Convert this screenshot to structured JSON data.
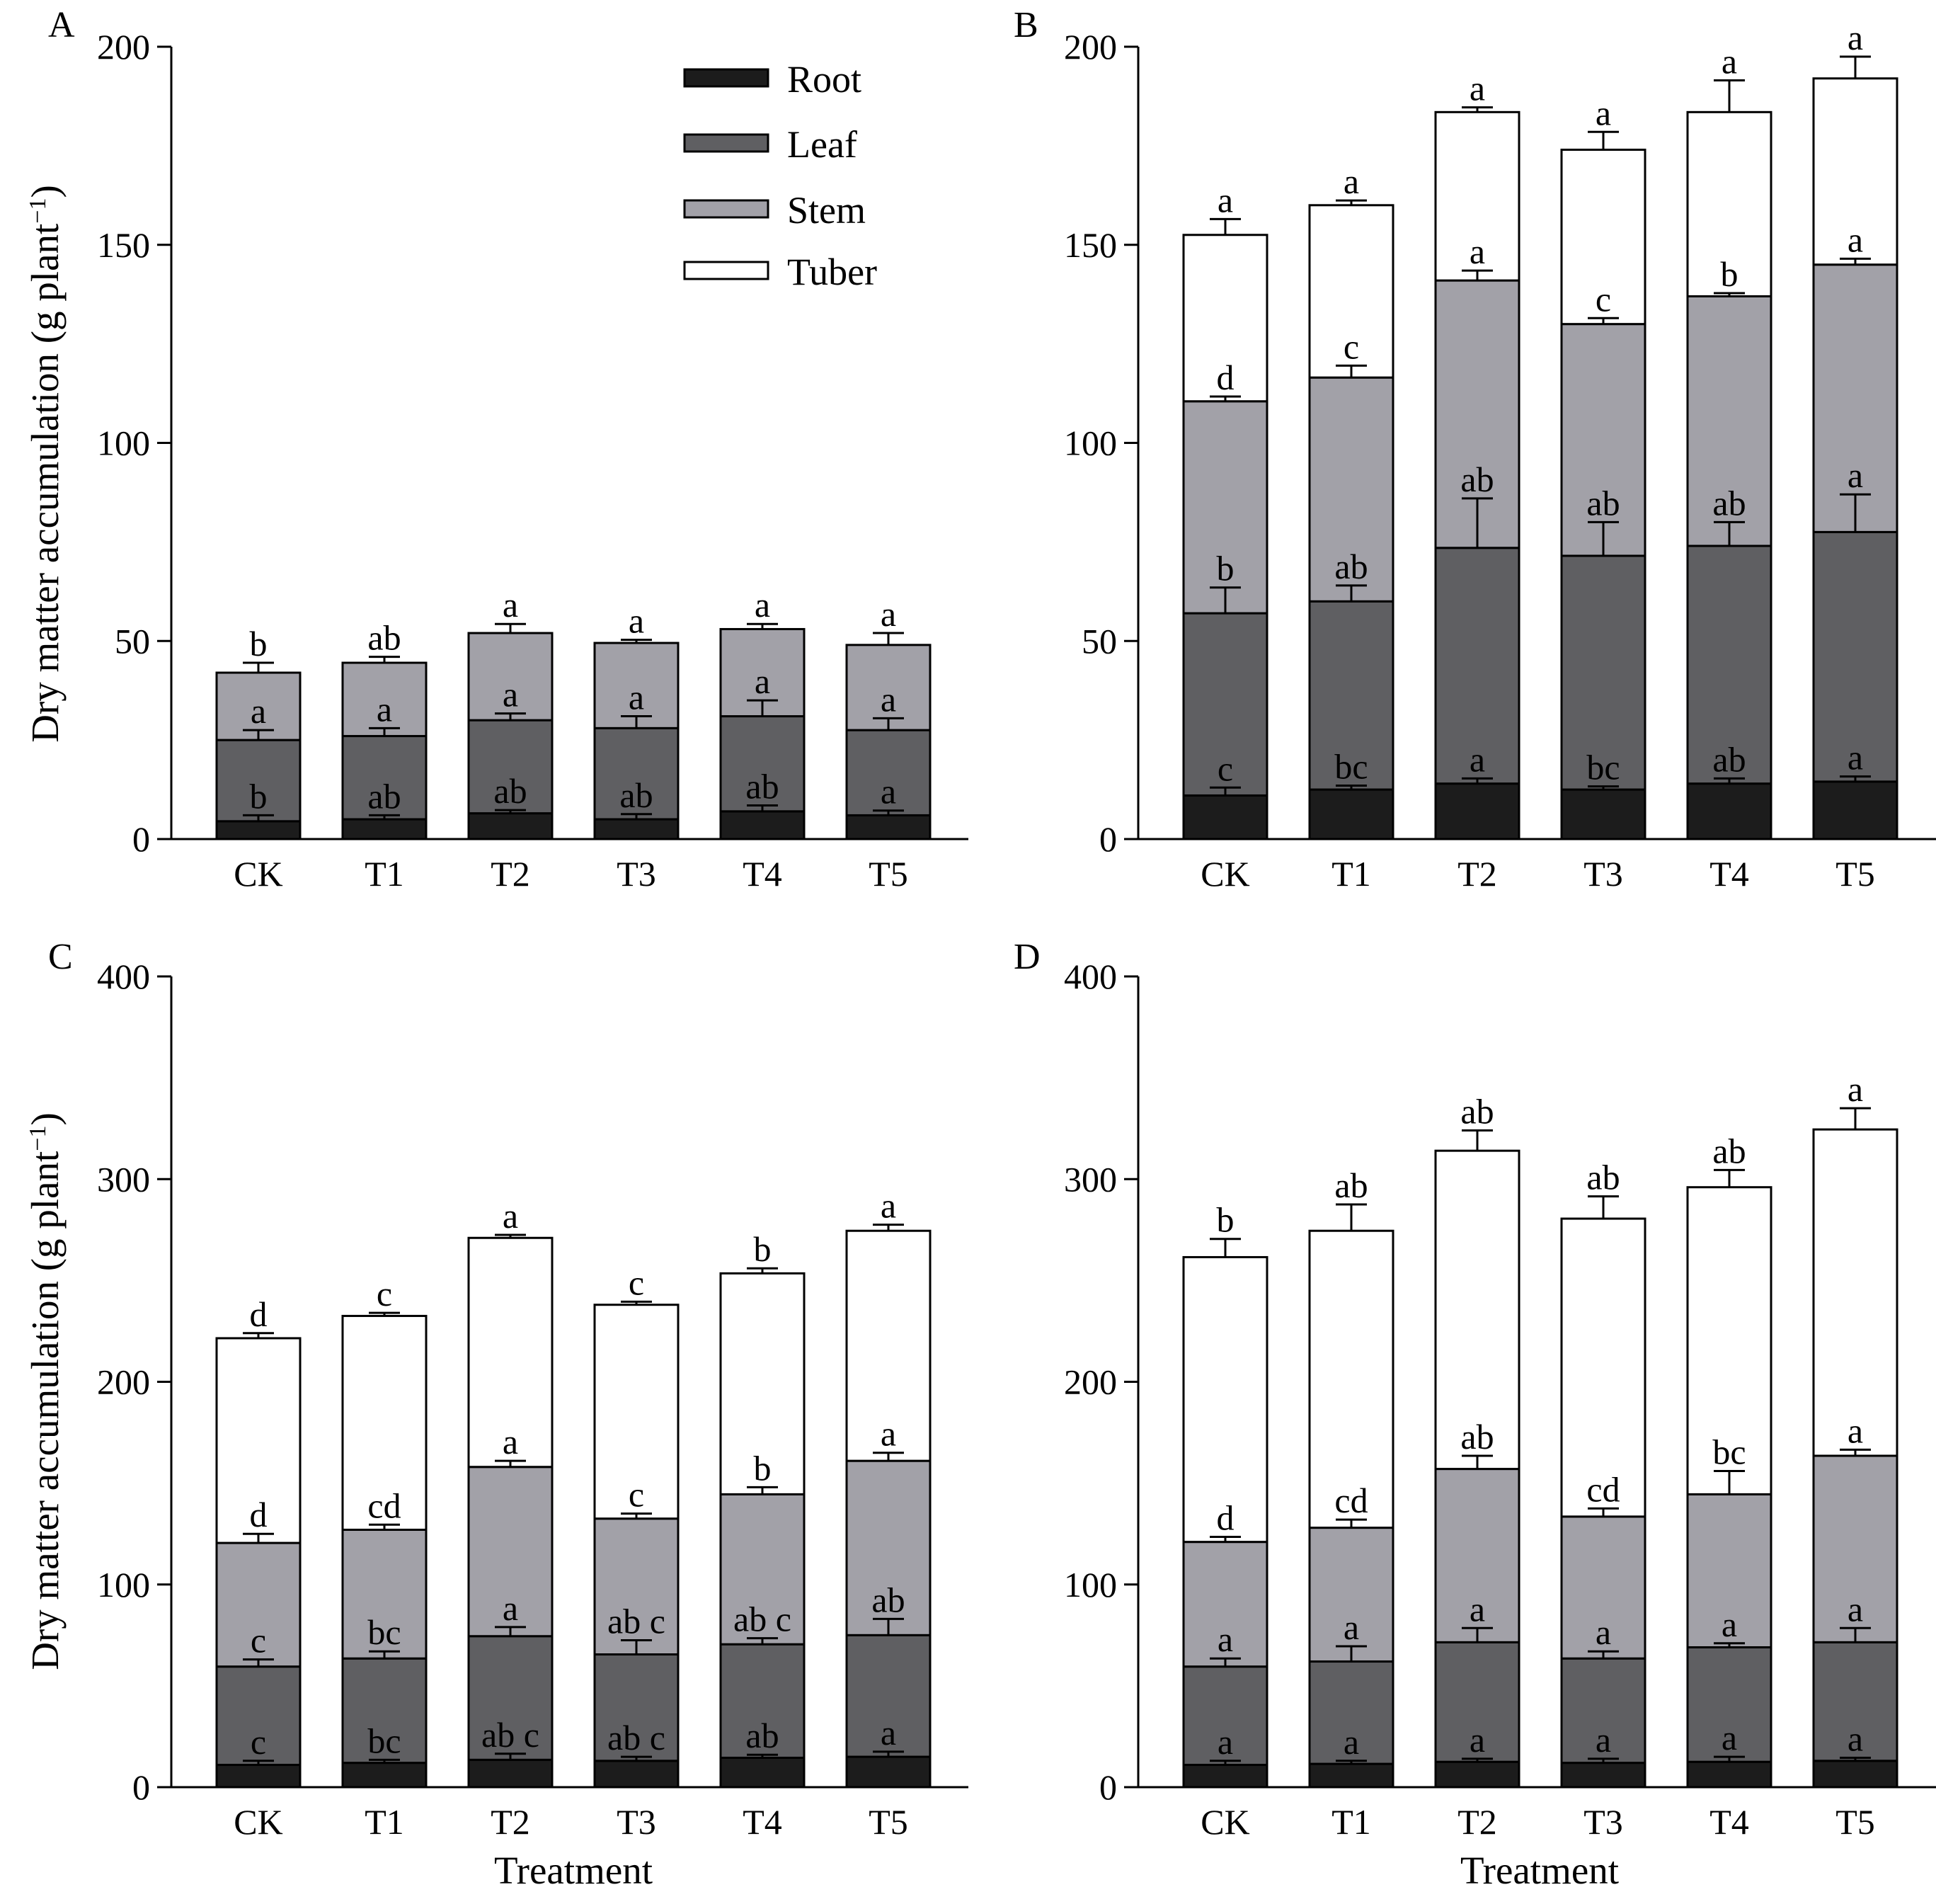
{
  "y_axis_label": "Dry matter accumulation (g plant",
  "y_axis_label_sup": "−1",
  "y_axis_label_close": ")",
  "legend": [
    {
      "name": "Root",
      "color": "#1c1c1c"
    },
    {
      "name": "Leaf",
      "color": "#5f5f62"
    },
    {
      "name": "Stem",
      "color": "#a2a1a8"
    },
    {
      "name": "Tuber",
      "color": "#ffffff"
    }
  ],
  "chart_data": [
    {
      "panel": "A",
      "type": "bar",
      "stacked": true,
      "categories": [
        "CK",
        "T1",
        "T2",
        "T3",
        "T4",
        "T5"
      ],
      "xlabel": "",
      "ylim": [
        0,
        200
      ],
      "yticks": [
        0,
        50,
        100,
        150,
        200
      ],
      "series": [
        {
          "name": "Root",
          "values": [
            4.5,
            5,
            6.5,
            5,
            7,
            6
          ],
          "errors": [
            1.5,
            1,
            0.8,
            1.3,
            1.5,
            1.2
          ],
          "letters": [
            "b",
            "ab",
            "ab",
            "ab",
            "ab",
            "a"
          ]
        },
        {
          "name": "Leaf",
          "values": [
            20.5,
            21,
            23.5,
            23,
            24,
            21.5
          ],
          "errors": [
            2.5,
            2,
            1.7,
            3,
            4,
            3
          ],
          "letters": [
            "a",
            "a",
            "a",
            "a",
            "a",
            "a"
          ]
        },
        {
          "name": "Stem",
          "values": [
            17,
            18.5,
            22,
            21.5,
            22,
            21.5
          ],
          "errors": [
            2.5,
            1.5,
            2.3,
            0.8,
            1.3,
            3
          ],
          "letters": [
            "b",
            "ab",
            "a",
            "a",
            "a",
            "a"
          ]
        }
      ]
    },
    {
      "panel": "B",
      "type": "bar",
      "stacked": true,
      "categories": [
        "CK",
        "T1",
        "T2",
        "T3",
        "T4",
        "T5"
      ],
      "xlabel": "",
      "ylim": [
        0,
        200
      ],
      "yticks": [
        0,
        50,
        100,
        150,
        200
      ],
      "series": [
        {
          "name": "Root",
          "values": [
            11,
            12.5,
            14,
            12.5,
            14,
            14.5
          ],
          "errors": [
            2,
            1,
            1.3,
            0.8,
            1.3,
            1.3
          ],
          "letters": [
            "c",
            "bc",
            "a",
            "bc",
            "ab",
            "a"
          ]
        },
        {
          "name": "Leaf",
          "values": [
            46,
            47.5,
            59.5,
            59,
            60,
            63
          ],
          "errors": [
            6.5,
            4,
            12.5,
            8.5,
            6,
            9.5
          ],
          "letters": [
            "b",
            "ab",
            "ab",
            "ab",
            "ab",
            "a"
          ]
        },
        {
          "name": "Stem",
          "values": [
            53.5,
            56.5,
            67.5,
            58.5,
            63,
            67.5
          ],
          "errors": [
            1.2,
            3,
            2.5,
            1.5,
            0.8,
            1.5
          ],
          "letters": [
            "d",
            "c",
            "a",
            "c",
            "b",
            "a"
          ]
        },
        {
          "name": "Tuber",
          "values": [
            42,
            43.5,
            42.5,
            44,
            46.5,
            47
          ],
          "errors": [
            4,
            1.2,
            1.2,
            4.5,
            8,
            5.5
          ],
          "letters": [
            "a",
            "a",
            "a",
            "a",
            "a",
            "a"
          ]
        }
      ]
    },
    {
      "panel": "C",
      "type": "bar",
      "stacked": true,
      "categories": [
        "CK",
        "T1",
        "T2",
        "T3",
        "T4",
        "T5"
      ],
      "xlabel": "Treatment",
      "ylim": [
        0,
        400
      ],
      "yticks": [
        0,
        100,
        200,
        300,
        400
      ],
      "series": [
        {
          "name": "Root",
          "values": [
            11,
            12,
            13.5,
            13,
            14.5,
            15
          ],
          "errors": [
            2,
            1.5,
            3,
            2,
            1.5,
            2.5
          ],
          "letters": [
            "c",
            "bc",
            "ab c",
            "ab c",
            "ab",
            "a"
          ]
        },
        {
          "name": "Leaf",
          "values": [
            48.5,
            51.5,
            61,
            52.5,
            56,
            60
          ],
          "errors": [
            3.5,
            3.5,
            4.5,
            7,
            3,
            8
          ],
          "letters": [
            "c",
            "bc",
            "a",
            "ab c",
            "ab c",
            "ab"
          ]
        },
        {
          "name": "Stem",
          "values": [
            61,
            63.5,
            83.5,
            67,
            74,
            86
          ],
          "errors": [
            4.5,
            2.5,
            3,
            2.5,
            3.5,
            4
          ],
          "letters": [
            "d",
            "cd",
            "a",
            "c",
            "b",
            "a"
          ]
        },
        {
          "name": "Tuber",
          "values": [
            101,
            105.5,
            113,
            105.5,
            109,
            113.5
          ],
          "errors": [
            2.5,
            1.5,
            1.5,
            1.5,
            2.5,
            3
          ],
          "letters": [
            "d",
            "c",
            "a",
            "c",
            "b",
            "a"
          ]
        }
      ]
    },
    {
      "panel": "D",
      "type": "bar",
      "stacked": true,
      "categories": [
        "CK",
        "T1",
        "T2",
        "T3",
        "T4",
        "T5"
      ],
      "xlabel": "Treatment",
      "ylim": [
        0,
        400
      ],
      "yticks": [
        0,
        100,
        200,
        300,
        400
      ],
      "series": [
        {
          "name": "Root",
          "values": [
            11,
            11.5,
            12.5,
            12,
            12.5,
            13
          ],
          "errors": [
            2,
            1.5,
            1.5,
            2,
            2.5,
            1.5
          ],
          "letters": [
            "a",
            "a",
            "a",
            "a",
            "a",
            "a"
          ]
        },
        {
          "name": "Leaf",
          "values": [
            48.5,
            50.5,
            59,
            51.5,
            56.5,
            58.5
          ],
          "errors": [
            4,
            7.5,
            7,
            3.5,
            2,
            7
          ],
          "letters": [
            "a",
            "a",
            "a",
            "a",
            "a",
            "a"
          ]
        },
        {
          "name": "Stem",
          "values": [
            61.5,
            66,
            85.5,
            70,
            75.5,
            92
          ],
          "errors": [
            2.5,
            4,
            6.5,
            4,
            11.5,
            3
          ],
          "letters": [
            "d",
            "cd",
            "ab",
            "cd",
            "bc",
            "a"
          ]
        },
        {
          "name": "Tuber",
          "values": [
            140.5,
            146.5,
            157,
            147,
            151.5,
            161
          ],
          "errors": [
            9,
            13,
            10,
            11,
            8.5,
            10.5
          ],
          "letters": [
            "b",
            "ab",
            "ab",
            "ab",
            "ab",
            "a"
          ]
        }
      ]
    }
  ]
}
